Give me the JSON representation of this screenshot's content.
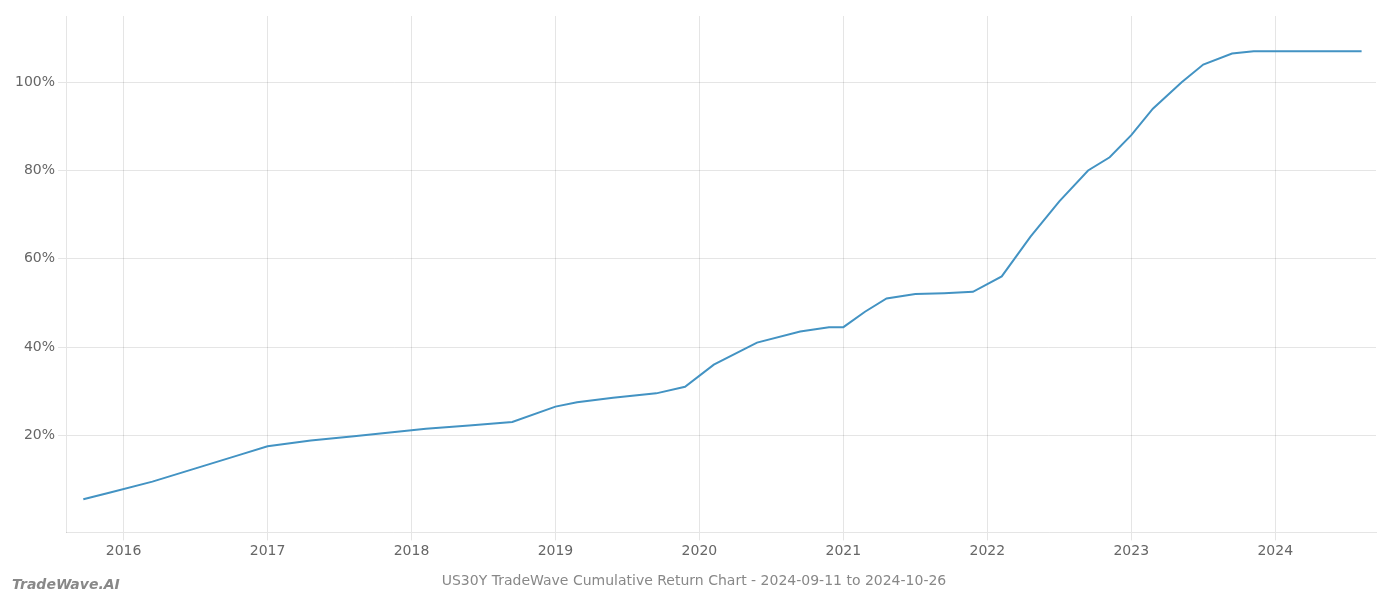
{
  "chart_data": {
    "type": "line",
    "title": "US30Y TradeWave Cumulative Return Chart - 2024-09-11 to 2024-10-26",
    "annotations": [
      {
        "text": "TradeWave.AI"
      }
    ],
    "x": [
      2015.72,
      2015.9,
      2016.2,
      2016.5,
      2016.8,
      2017.0,
      2017.3,
      2017.6,
      2017.9,
      2018.1,
      2018.4,
      2018.7,
      2019.0,
      2019.15,
      2019.4,
      2019.7,
      2019.9,
      2020.1,
      2020.4,
      2020.7,
      2020.9,
      2021.0,
      2021.15,
      2021.3,
      2021.5,
      2021.7,
      2021.9,
      2022.1,
      2022.3,
      2022.5,
      2022.7,
      2022.85,
      2023.0,
      2023.15,
      2023.35,
      2023.5,
      2023.7,
      2023.85,
      2024.0,
      2024.3,
      2024.6
    ],
    "values": [
      5.5,
      7.0,
      9.5,
      12.5,
      15.5,
      17.5,
      18.8,
      19.8,
      20.8,
      21.5,
      22.2,
      23.0,
      26.5,
      27.5,
      28.5,
      29.5,
      31.0,
      36.0,
      41.0,
      43.5,
      44.5,
      44.5,
      48.0,
      51.0,
      52.0,
      52.2,
      52.5,
      56.0,
      65.0,
      73.0,
      80.0,
      83.0,
      88.0,
      94.0,
      100.0,
      104.0,
      106.5,
      107.0,
      107.0,
      107.0,
      107.0
    ],
    "color": "#4393c3",
    "marker": "none",
    "xlim": [
      2015.6,
      2024.7
    ],
    "ylim": [
      -2,
      115
    ],
    "xticks": [
      2016,
      2017,
      2018,
      2019,
      2020,
      2021,
      2022,
      2023,
      2024
    ],
    "yticks": [
      {
        "value": 20,
        "label": "20%"
      },
      {
        "value": 40,
        "label": "40%"
      },
      {
        "value": 60,
        "label": "60%"
      },
      {
        "value": 80,
        "label": "80%"
      },
      {
        "value": 100,
        "label": "100%"
      }
    ],
    "grid": true
  }
}
